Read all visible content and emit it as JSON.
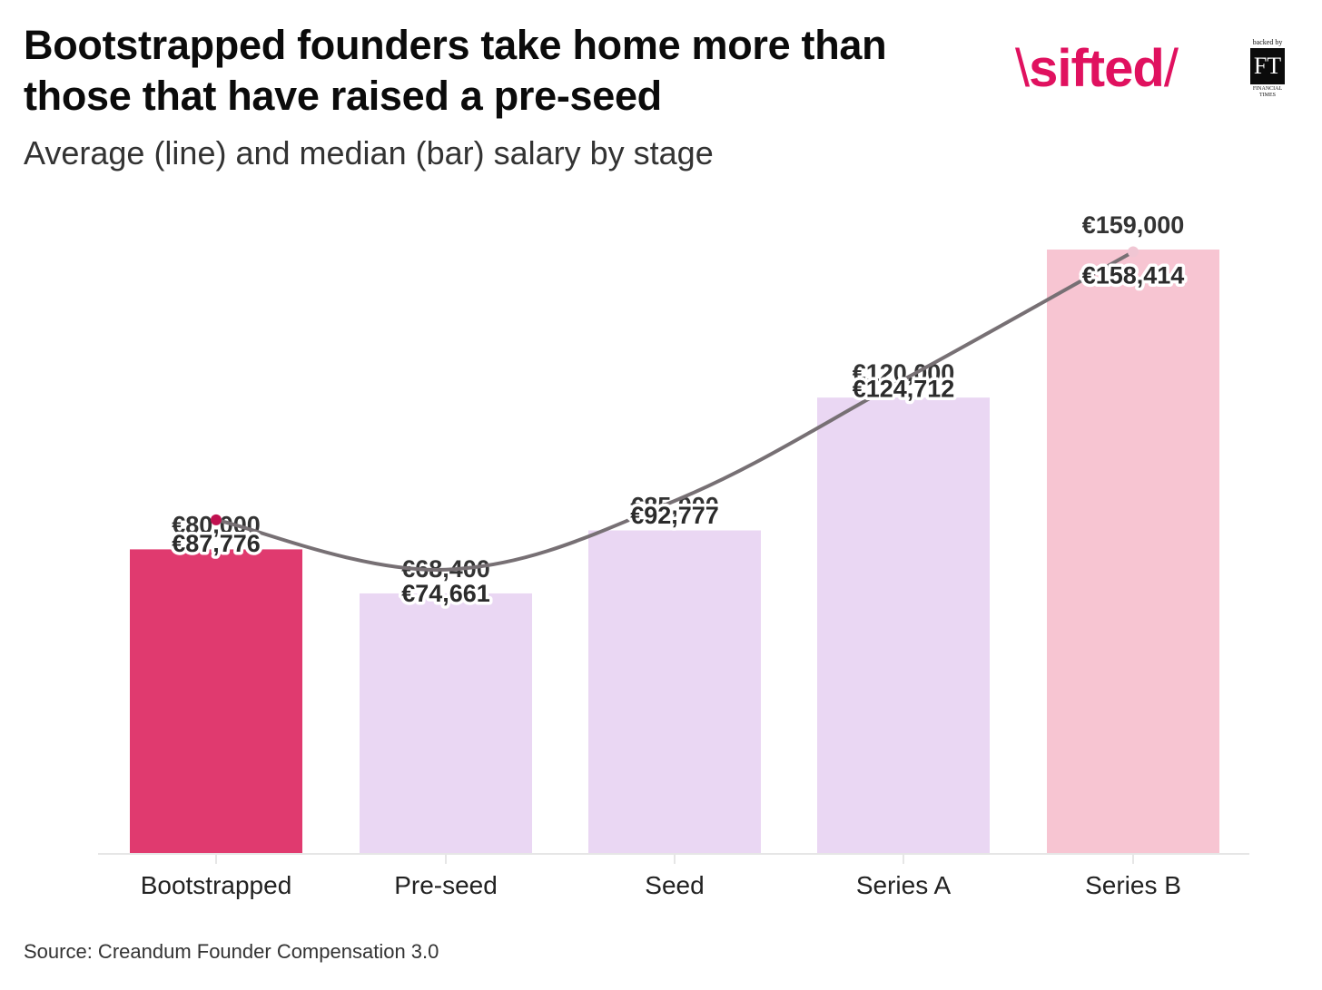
{
  "title": "Bootstrapped founders take home more than those that have raised a pre-seed",
  "subtitle": "Average (line) and median (bar) salary by stage",
  "source": "Source: Creandum Founder Compensation 3.0",
  "brand": {
    "name": "sifted",
    "partner_note": "backed by",
    "partner_mark": "FT",
    "partner_name": "FINANCIAL TIMES"
  },
  "colors": {
    "accent": "#e0115f",
    "bar_highlight": "#e03a6f",
    "bar_default": "#ead7f3",
    "bar_series_b": "#f7c5d2",
    "line": "#777074"
  },
  "chart_data": {
    "type": "bar",
    "categories": [
      "Bootstrapped",
      "Pre-seed",
      "Seed",
      "Series A",
      "Series B"
    ],
    "series": [
      {
        "name": "median",
        "type": "bar",
        "values": [
          80000,
          68400,
          85000,
          120000,
          159000
        ],
        "labels": [
          "€80,000",
          "€68,400",
          "€85,000",
          "€120,000",
          "€159,000"
        ]
      },
      {
        "name": "average",
        "type": "line",
        "values": [
          87776,
          74661,
          92777,
          124712,
          158414
        ],
        "labels": [
          "€87,776",
          "€74,661",
          "€92,777",
          "€124,712",
          "€158,414"
        ]
      }
    ],
    "ylim": [
      0,
      159000
    ],
    "grid": false,
    "legend": "none"
  }
}
